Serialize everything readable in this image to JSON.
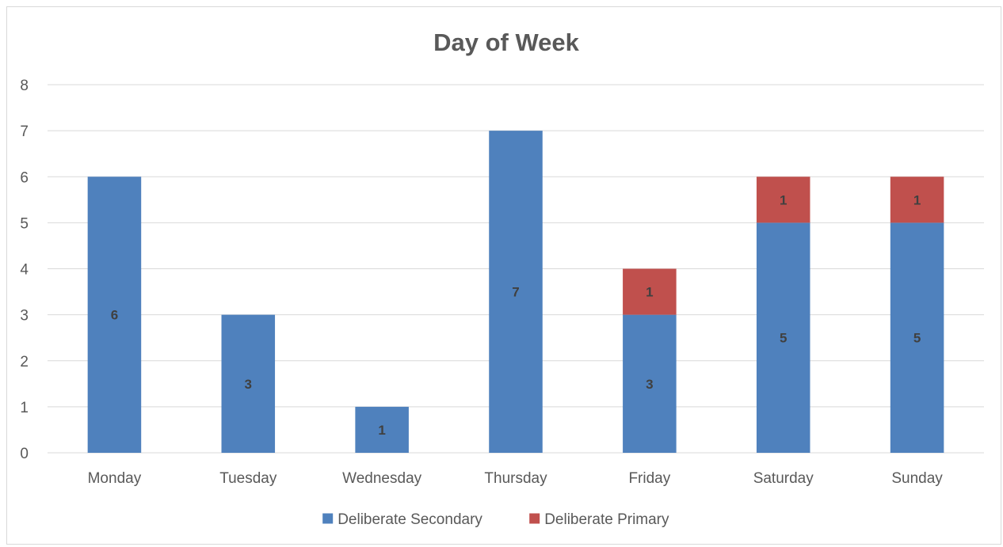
{
  "chart_data": {
    "type": "bar",
    "stacked": true,
    "title": "Day of Week",
    "xlabel": "",
    "ylabel": "",
    "categories": [
      "Monday",
      "Tuesday",
      "Wednesday",
      "Thursday",
      "Friday",
      "Saturday",
      "Sunday"
    ],
    "series": [
      {
        "name": "Deliberate Secondary",
        "color": "#4f81bd",
        "values": [
          6,
          3,
          1,
          7,
          3,
          5,
          5
        ],
        "labels": [
          "6",
          "3",
          "1",
          "7",
          "3",
          "5",
          "5"
        ]
      },
      {
        "name": "Deliberate Primary",
        "color": "#c0504d",
        "values": [
          0,
          0,
          0,
          0,
          1,
          1,
          1
        ],
        "labels": [
          "",
          "",
          "",
          "",
          "1",
          "1",
          "1"
        ]
      }
    ],
    "ylim": [
      0,
      8
    ],
    "yticks": [
      "0",
      "1",
      "2",
      "3",
      "4",
      "5",
      "6",
      "7",
      "8"
    ],
    "grid": true,
    "legend_position": "bottom"
  }
}
